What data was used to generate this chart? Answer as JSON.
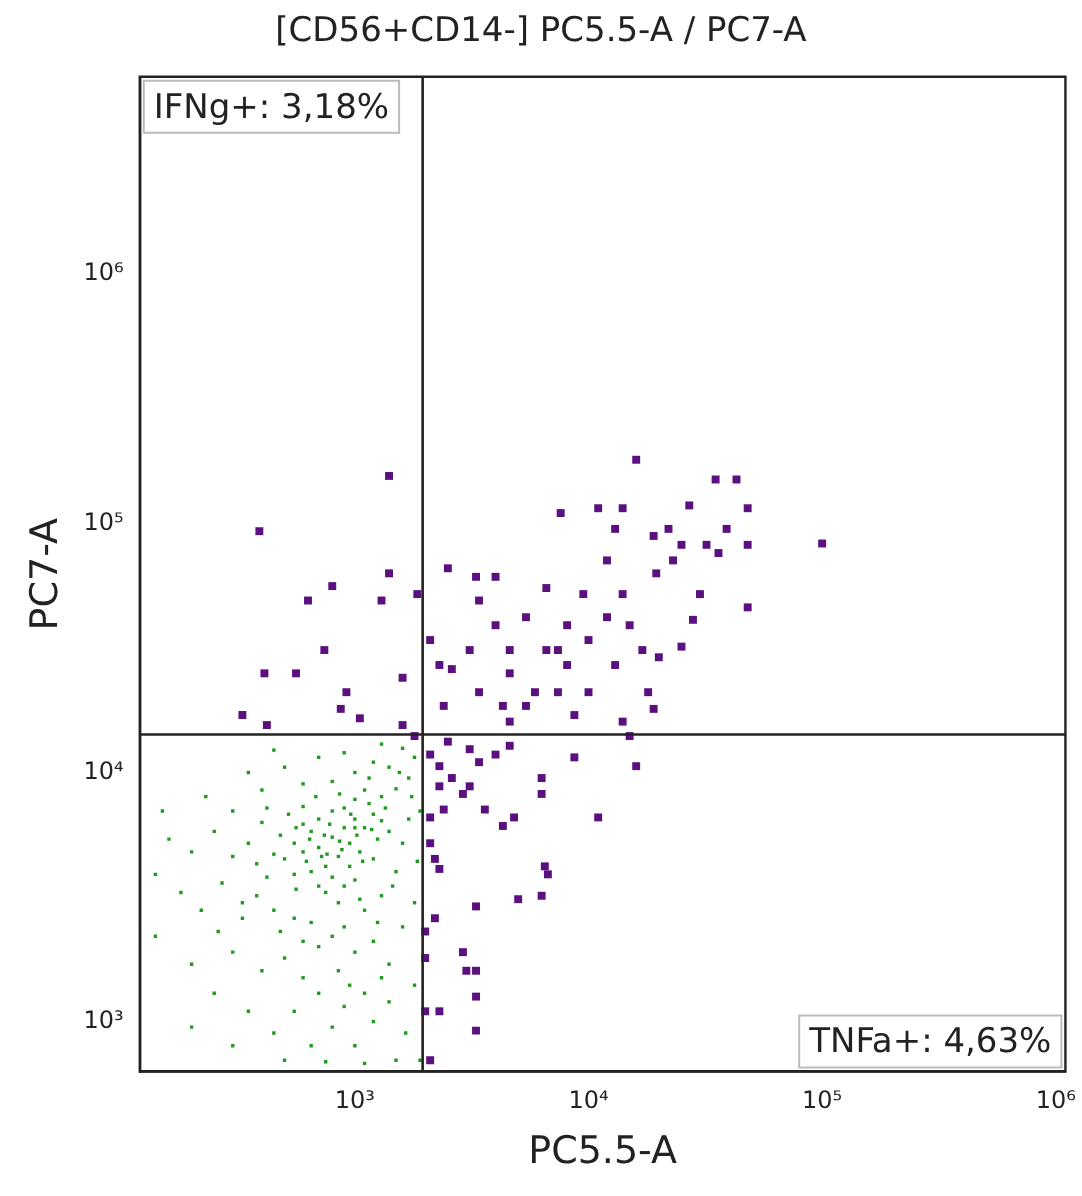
{
  "chart_data": {
    "type": "scatter",
    "title": "[CD56+CD14-] PC5.5-A / PC7-A",
    "xlabel": "PC5.5-A",
    "ylabel": "PC7-A",
    "log": "xy",
    "marker": "square",
    "legend": false,
    "grid": false,
    "xlim": [
      120,
      1100000
    ],
    "ylim": [
      630,
      6200000
    ],
    "xticks": [
      {
        "value": 1000,
        "label": "10³"
      },
      {
        "value": 10000,
        "label": "10⁴"
      },
      {
        "value": 100000,
        "label": "10⁵"
      },
      {
        "value": 1000000,
        "label": "10⁶"
      }
    ],
    "yticks": [
      {
        "value": 1000,
        "label": "10³"
      },
      {
        "value": 10000,
        "label": "10⁴"
      },
      {
        "value": 100000,
        "label": "10⁵"
      },
      {
        "value": 1000000,
        "label": "10⁶"
      }
    ],
    "ref_lines": [
      {
        "axis": "x",
        "value": 1950,
        "color": "#222222"
      },
      {
        "axis": "y",
        "value": 14200,
        "color": "#222222"
      }
    ],
    "annotations": [
      "IFNg+: 3,18%",
      "TNFa+: 4,63%"
    ],
    "series": [
      {
        "color": "#1f9a1f",
        "x": [
          800,
          700,
          900,
          1000,
          600,
          750,
          850,
          950,
          1100,
          1200,
          650,
          550,
          500,
          700,
          900,
          1000,
          1150,
          1300,
          1250,
          1050,
          950,
          800,
          650,
          550,
          450,
          480,
          600,
          800,
          1100,
          1350,
          900,
          750,
          850,
          700,
          1000,
          1200,
          1400,
          1300,
          600,
          520,
          400,
          350,
          300,
          420,
          380,
          450,
          550,
          650,
          800,
          700,
          900,
          1100,
          1300,
          1500,
          1600,
          1700,
          1500,
          1700,
          1400,
          1200,
          1000,
          800,
          600,
          500,
          400,
          300,
          250,
          200,
          160,
          140,
          180,
          220,
          260,
          330,
          300,
          400,
          500,
          600,
          700,
          850,
          1000,
          1200,
          1400,
          1600,
          1800,
          1850,
          1900,
          1800,
          1600,
          1300,
          900,
          700,
          450,
          350,
          230,
          150,
          140,
          200,
          250,
          350,
          450,
          550,
          650,
          800,
          900,
          1000,
          1200,
          1400,
          1650,
          1800,
          1900,
          1500,
          1100,
          750,
          500,
          300,
          200,
          1300,
          1100,
          950,
          600,
          480,
          1250,
          1450,
          1050,
          560,
          380,
          270,
          330,
          1750,
          1550,
          1150,
          860,
          680,
          420,
          560,
          740,
          880,
          1020,
          1180,
          960,
          780,
          640,
          620,
          1080,
          720,
          860,
          1000,
          760
        ],
        "values": [
          5500,
          5000,
          6000,
          6500,
          4800,
          4200,
          4600,
          5200,
          6000,
          6800,
          5800,
          5200,
          4500,
          6500,
          7200,
          7800,
          7500,
          6400,
          5400,
          4800,
          4200,
          3800,
          4000,
          3900,
          4700,
          5600,
          6200,
          7000,
          8500,
          7200,
          3500,
          3300,
          3000,
          3500,
          3700,
          4500,
          5800,
          8000,
          7300,
          6800,
          6300,
          5200,
          4600,
          3800,
          3200,
          2800,
          2600,
          2500,
          2200,
          2000,
          2400,
          2800,
          3200,
          4000,
          5200,
          6500,
          8600,
          9500,
          10500,
          11000,
          10000,
          9200,
          9000,
          10500,
          8500,
          7000,
          5800,
          4800,
          5400,
          3900,
          3300,
          2800,
          2300,
          2600,
          1900,
          1600,
          1800,
          1500,
          1300,
          1600,
          1900,
          2100,
          1700,
          2400,
          3000,
          4400,
          7000,
          11500,
          12500,
          13000,
          12000,
          11500,
          12300,
          10000,
          8000,
          7000,
          2200,
          1700,
          1300,
          1100,
          900,
          1100,
          800,
          950,
          1150,
          800,
          1000,
          1200,
          900,
          1400,
          700,
          700,
          680,
          690,
          700,
          800,
          950,
          1500,
          1300,
          1400,
          2100,
          2300,
          2500,
          3500,
          3100,
          3400,
          4300,
          3600,
          3000,
          8000,
          10000,
          9500,
          8200,
          8000,
          7200,
          6000,
          5600,
          4900,
          5600,
          5900,
          6800,
          6200,
          5400,
          4400,
          4400,
          4600,
          5300,
          6000,
          4700
        ]
      },
      {
        "color": "#5b1080",
        "x": [
          390,
          1400,
          16000,
          100000,
          35000,
          43000,
          48000,
          48000,
          48000,
          39000,
          36000,
          27000,
          25000,
          22000,
          19500,
          30000,
          28000,
          25000,
          20000,
          19000,
          14000,
          11000,
          7600,
          12000,
          14000,
          12000,
          15000,
          17000,
          13000,
          18000,
          10000,
          9500,
          8100,
          10000,
          6600,
          5400,
          6600,
          8100,
          7400,
          5900,
          4600,
          4600,
          4000,
          3400,
          3300,
          4000,
          2500,
          2100,
          2300,
          2600,
          3100,
          3400,
          2400,
          4300,
          5400,
          8700,
          14000,
          19000,
          15000,
          16000,
          8700,
          6300,
          6300,
          11000,
          6500,
          6700,
          6300,
          5000,
          3300,
          2300,
          2200,
          2900,
          3000,
          3300,
          3300,
          3300,
          2300,
          2000,
          2100,
          870,
          1050,
          920,
          800,
          630,
          740,
          560,
          410,
          330,
          420,
          1300,
          1400,
          1850,
          1600,
          1600,
          1800,
          2100,
          2300,
          2600,
          2300,
          2900,
          2400,
          3400,
          4000,
          4600,
          2100,
          2100,
          3600,
          4300,
          3100,
          2200,
          2500,
          3100,
          2000,
          2000,
          4600,
          4800,
          23000,
          32000,
          13000,
          7400
        ],
        "values": [
          93000,
          155000,
          180000,
          83000,
          150000,
          150000,
          115000,
          82000,
          46000,
          95000,
          76000,
          118000,
          82000,
          95000,
          63000,
          52000,
          41000,
          32000,
          29000,
          89000,
          115000,
          115000,
          110000,
          71000,
          52000,
          42000,
          39000,
          31000,
          27000,
          21000,
          21000,
          52000,
          39000,
          34000,
          55000,
          42000,
          31000,
          27000,
          21000,
          21000,
          25000,
          31000,
          39000,
          49000,
          61000,
          61000,
          66000,
          34000,
          27000,
          26000,
          31000,
          21000,
          18500,
          18500,
          18500,
          17000,
          16000,
          18000,
          14000,
          10600,
          11500,
          9500,
          8200,
          6600,
          4200,
          3900,
          3200,
          3100,
          2900,
          4100,
          2600,
          1900,
          1600,
          1600,
          1260,
          920,
          1100,
          1800,
          700,
          18000,
          16500,
          21000,
          56000,
          49000,
          31000,
          25000,
          25000,
          17000,
          15500,
          49000,
          63000,
          52000,
          24000,
          15500,
          14000,
          11800,
          10600,
          9500,
          8800,
          8200,
          7100,
          11000,
          11800,
          12800,
          6600,
          5200,
          7100,
          6100,
          8800,
          4500,
          13300,
          12400,
          2300,
          1100,
          16000,
          6600,
          71000,
          82000,
          95000,
          31000
        ]
      }
    ]
  }
}
